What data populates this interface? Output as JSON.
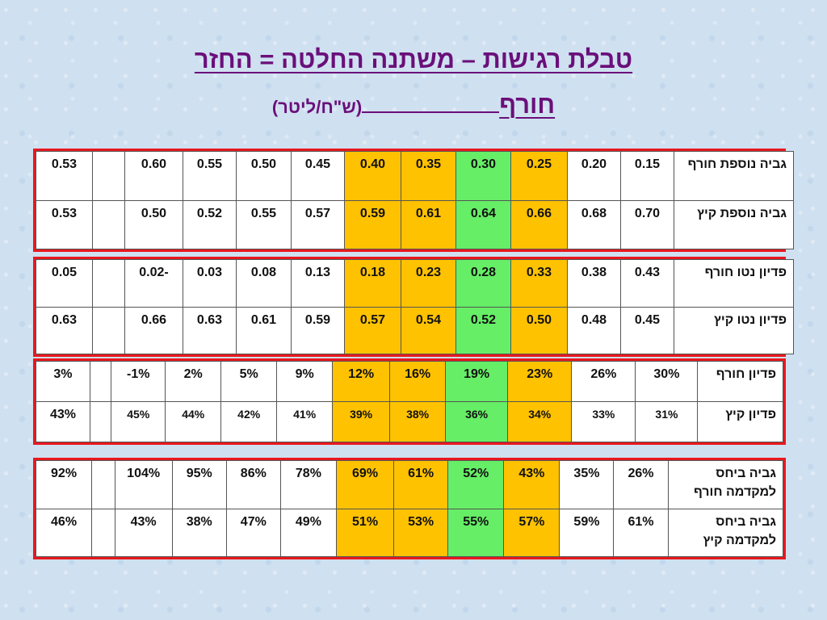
{
  "title": {
    "line1": "טבלת רגישות – משתנה החלטה = החזר",
    "line2_main": "חורף",
    "line2_unit": "(ש\"ח/ליטר)"
  },
  "colors": {
    "highlight_yellow": "#ffc200",
    "highlight_green": "#66ee66",
    "box_border": "#e8181e",
    "title": "#6a0f7a"
  },
  "tables": [
    {
      "rows": [
        {
          "label": "גביה נוספת חורף",
          "cells": [
            "0.15",
            "0.20",
            "0.25",
            "0.30",
            "0.35",
            "0.40",
            "0.45",
            "0.50",
            "0.55",
            "0.60",
            "",
            "0.53"
          ]
        },
        {
          "label": "גביה נוספת קיץ",
          "cells": [
            "0.70",
            "0.68",
            "0.66",
            "0.64",
            "0.61",
            "0.59",
            "0.57",
            "0.55",
            "0.52",
            "0.50",
            "",
            "0.53"
          ]
        }
      ]
    },
    {
      "rows": [
        {
          "label": "פדיון נטו חורף",
          "cells": [
            "0.43",
            "0.38",
            "0.33",
            "0.28",
            "0.23",
            "0.18",
            "0.13",
            "0.08",
            "0.03",
            "0.02-",
            "",
            "0.05"
          ]
        },
        {
          "label": "פדיון נטו קיץ",
          "cells": [
            "0.45",
            "0.48",
            "0.50",
            "0.52",
            "0.54",
            "0.57",
            "0.59",
            "0.61",
            "0.63",
            "0.66",
            "",
            "0.63"
          ]
        }
      ]
    },
    {
      "rows": [
        {
          "label": "פדיון חורף",
          "cells": [
            "30%",
            "26%",
            "23%",
            "19%",
            "16%",
            "12%",
            "9%",
            "5%",
            "2%",
            "-1%",
            "",
            "3%"
          ]
        },
        {
          "label": "פדיון קיץ",
          "cells": [
            "31%",
            "33%",
            "34%",
            "36%",
            "38%",
            "39%",
            "41%",
            "42%",
            "44%",
            "45%",
            "",
            "43%"
          ]
        }
      ]
    },
    {
      "rows": [
        {
          "label": "גביה ביחס למקדמה חורף",
          "cells": [
            "26%",
            "35%",
            "43%",
            "52%",
            "61%",
            "69%",
            "78%",
            "86%",
            "95%",
            "104%",
            "",
            "92%"
          ]
        },
        {
          "label": "גביה ביחס למקדמה קיץ",
          "cells": [
            "61%",
            "59%",
            "57%",
            "55%",
            "53%",
            "51%",
            "49%",
            "47%",
            "38%",
            "43%",
            "",
            "46%"
          ]
        }
      ]
    }
  ]
}
